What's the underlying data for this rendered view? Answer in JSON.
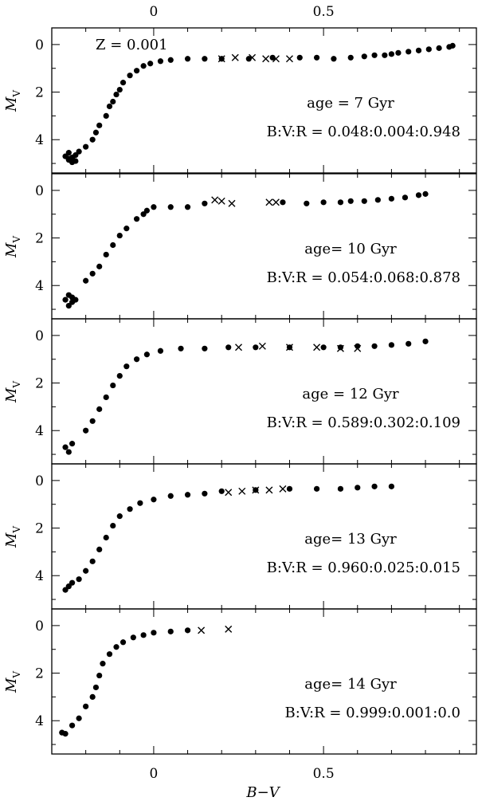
{
  "chart_data": {
    "type": "scatter",
    "title": "",
    "xlabel": "B−V",
    "ylabel": "M_V",
    "x_ticks": [
      0,
      0.5
    ],
    "y_ticks": [
      0,
      2,
      4
    ],
    "xlim": [
      -0.3,
      0.95
    ],
    "ylim": [
      5.4,
      -0.7
    ],
    "global_annotation": "Z  =  0.001",
    "panels": [
      {
        "age_label": "age = 7 Gyr",
        "ratio_label": "B:V:R  =  0.048:0.004:0.948",
        "series": [
          {
            "marker": "dot",
            "points": [
              [
                -0.25,
                4.55
              ],
              [
                -0.26,
                4.7
              ],
              [
                -0.25,
                4.8
              ],
              [
                -0.24,
                4.95
              ],
              [
                -0.23,
                4.65
              ],
              [
                -0.25,
                4.85
              ],
              [
                -0.24,
                4.75
              ],
              [
                -0.23,
                4.9
              ],
              [
                -0.22,
                4.5
              ],
              [
                -0.2,
                4.3
              ],
              [
                -0.18,
                4.0
              ],
              [
                -0.17,
                3.7
              ],
              [
                -0.16,
                3.4
              ],
              [
                -0.14,
                3.0
              ],
              [
                -0.13,
                2.6
              ],
              [
                -0.12,
                2.4
              ],
              [
                -0.11,
                2.1
              ],
              [
                -0.1,
                1.9
              ],
              [
                -0.09,
                1.6
              ],
              [
                -0.07,
                1.3
              ],
              [
                -0.05,
                1.1
              ],
              [
                -0.03,
                0.9
              ],
              [
                -0.01,
                0.8
              ],
              [
                0.02,
                0.7
              ],
              [
                0.05,
                0.65
              ],
              [
                0.1,
                0.6
              ],
              [
                0.15,
                0.6
              ],
              [
                0.2,
                0.6
              ],
              [
                0.28,
                0.6
              ],
              [
                0.35,
                0.55
              ],
              [
                0.43,
                0.55
              ],
              [
                0.48,
                0.55
              ],
              [
                0.53,
                0.6
              ],
              [
                0.58,
                0.55
              ],
              [
                0.62,
                0.5
              ],
              [
                0.65,
                0.45
              ],
              [
                0.68,
                0.45
              ],
              [
                0.7,
                0.4
              ],
              [
                0.72,
                0.35
              ],
              [
                0.75,
                0.3
              ],
              [
                0.78,
                0.25
              ],
              [
                0.81,
                0.2
              ],
              [
                0.84,
                0.15
              ],
              [
                0.87,
                0.1
              ],
              [
                0.88,
                0.05
              ]
            ]
          },
          {
            "marker": "cross",
            "points": [
              [
                0.2,
                0.6
              ],
              [
                0.24,
                0.55
              ],
              [
                0.29,
                0.55
              ],
              [
                0.33,
                0.6
              ],
              [
                0.36,
                0.6
              ],
              [
                0.4,
                0.6
              ]
            ]
          }
        ]
      },
      {
        "age_label": "age= 10 Gyr",
        "ratio_label": "B:V:R  =  0.054:0.068:0.878",
        "series": [
          {
            "marker": "dot",
            "points": [
              [
                -0.26,
                4.6
              ],
              [
                -0.25,
                4.4
              ],
              [
                -0.24,
                4.7
              ],
              [
                -0.25,
                4.85
              ],
              [
                -0.23,
                4.6
              ],
              [
                -0.24,
                4.5
              ],
              [
                -0.2,
                3.8
              ],
              [
                -0.18,
                3.5
              ],
              [
                -0.16,
                3.2
              ],
              [
                -0.14,
                2.7
              ],
              [
                -0.12,
                2.3
              ],
              [
                -0.1,
                1.9
              ],
              [
                -0.08,
                1.6
              ],
              [
                -0.05,
                1.2
              ],
              [
                -0.03,
                1.0
              ],
              [
                -0.02,
                0.85
              ],
              [
                0.0,
                0.7
              ],
              [
                0.05,
                0.7
              ],
              [
                0.1,
                0.7
              ],
              [
                0.15,
                0.55
              ],
              [
                0.38,
                0.5
              ],
              [
                0.45,
                0.55
              ],
              [
                0.5,
                0.5
              ],
              [
                0.55,
                0.5
              ],
              [
                0.58,
                0.45
              ],
              [
                0.62,
                0.45
              ],
              [
                0.66,
                0.4
              ],
              [
                0.7,
                0.35
              ],
              [
                0.74,
                0.3
              ],
              [
                0.78,
                0.2
              ],
              [
                0.8,
                0.15
              ]
            ]
          },
          {
            "marker": "cross",
            "points": [
              [
                0.18,
                0.4
              ],
              [
                0.2,
                0.45
              ],
              [
                0.23,
                0.55
              ],
              [
                0.34,
                0.5
              ],
              [
                0.36,
                0.5
              ]
            ]
          }
        ]
      },
      {
        "age_label": "age = 12 Gyr",
        "ratio_label": "B:V:R  =  0.589:0.302:0.109",
        "series": [
          {
            "marker": "dot",
            "points": [
              [
                -0.26,
                4.7
              ],
              [
                -0.25,
                4.9
              ],
              [
                -0.24,
                4.55
              ],
              [
                -0.2,
                4.0
              ],
              [
                -0.18,
                3.6
              ],
              [
                -0.16,
                3.1
              ],
              [
                -0.14,
                2.6
              ],
              [
                -0.12,
                2.1
              ],
              [
                -0.1,
                1.7
              ],
              [
                -0.08,
                1.3
              ],
              [
                -0.05,
                1.0
              ],
              [
                -0.02,
                0.8
              ],
              [
                0.02,
                0.65
              ],
              [
                0.08,
                0.55
              ],
              [
                0.15,
                0.55
              ],
              [
                0.22,
                0.5
              ],
              [
                0.3,
                0.5
              ],
              [
                0.4,
                0.5
              ],
              [
                0.5,
                0.5
              ],
              [
                0.55,
                0.5
              ],
              [
                0.6,
                0.45
              ],
              [
                0.65,
                0.45
              ],
              [
                0.7,
                0.4
              ],
              [
                0.75,
                0.35
              ],
              [
                0.8,
                0.25
              ]
            ]
          },
          {
            "marker": "cross",
            "points": [
              [
                0.25,
                0.5
              ],
              [
                0.32,
                0.45
              ],
              [
                0.4,
                0.5
              ],
              [
                0.48,
                0.5
              ],
              [
                0.55,
                0.55
              ],
              [
                0.6,
                0.55
              ]
            ]
          }
        ]
      },
      {
        "age_label": "age= 13 Gyr",
        "ratio_label": "B:V:R  =  0.960:0.025:0.015",
        "series": [
          {
            "marker": "dot",
            "points": [
              [
                -0.26,
                4.6
              ],
              [
                -0.25,
                4.45
              ],
              [
                -0.24,
                4.3
              ],
              [
                -0.22,
                4.15
              ],
              [
                -0.2,
                3.8
              ],
              [
                -0.18,
                3.4
              ],
              [
                -0.16,
                2.9
              ],
              [
                -0.14,
                2.4
              ],
              [
                -0.12,
                1.9
              ],
              [
                -0.1,
                1.5
              ],
              [
                -0.07,
                1.2
              ],
              [
                -0.04,
                0.95
              ],
              [
                0.0,
                0.8
              ],
              [
                0.05,
                0.65
              ],
              [
                0.1,
                0.6
              ],
              [
                0.15,
                0.55
              ],
              [
                0.2,
                0.45
              ],
              [
                0.3,
                0.4
              ],
              [
                0.4,
                0.35
              ],
              [
                0.48,
                0.35
              ],
              [
                0.55,
                0.35
              ],
              [
                0.6,
                0.3
              ],
              [
                0.65,
                0.25
              ],
              [
                0.7,
                0.25
              ]
            ]
          },
          {
            "marker": "cross",
            "points": [
              [
                0.22,
                0.5
              ],
              [
                0.26,
                0.45
              ],
              [
                0.3,
                0.4
              ],
              [
                0.34,
                0.4
              ],
              [
                0.38,
                0.35
              ]
            ]
          }
        ]
      },
      {
        "age_label": "age= 14 Gyr",
        "ratio_label": "B:V:R  =  0.999:0.001:0.0",
        "series": [
          {
            "marker": "dot",
            "points": [
              [
                -0.27,
                4.5
              ],
              [
                -0.26,
                4.55
              ],
              [
                -0.24,
                4.2
              ],
              [
                -0.22,
                3.9
              ],
              [
                -0.2,
                3.4
              ],
              [
                -0.18,
                3.0
              ],
              [
                -0.17,
                2.6
              ],
              [
                -0.16,
                2.1
              ],
              [
                -0.15,
                1.6
              ],
              [
                -0.13,
                1.2
              ],
              [
                -0.11,
                0.9
              ],
              [
                -0.09,
                0.7
              ],
              [
                -0.06,
                0.5
              ],
              [
                -0.03,
                0.4
              ],
              [
                0.0,
                0.3
              ],
              [
                0.05,
                0.25
              ],
              [
                0.1,
                0.2
              ]
            ]
          },
          {
            "marker": "cross",
            "points": [
              [
                0.14,
                0.2
              ],
              [
                0.22,
                0.15
              ]
            ]
          }
        ]
      }
    ]
  }
}
